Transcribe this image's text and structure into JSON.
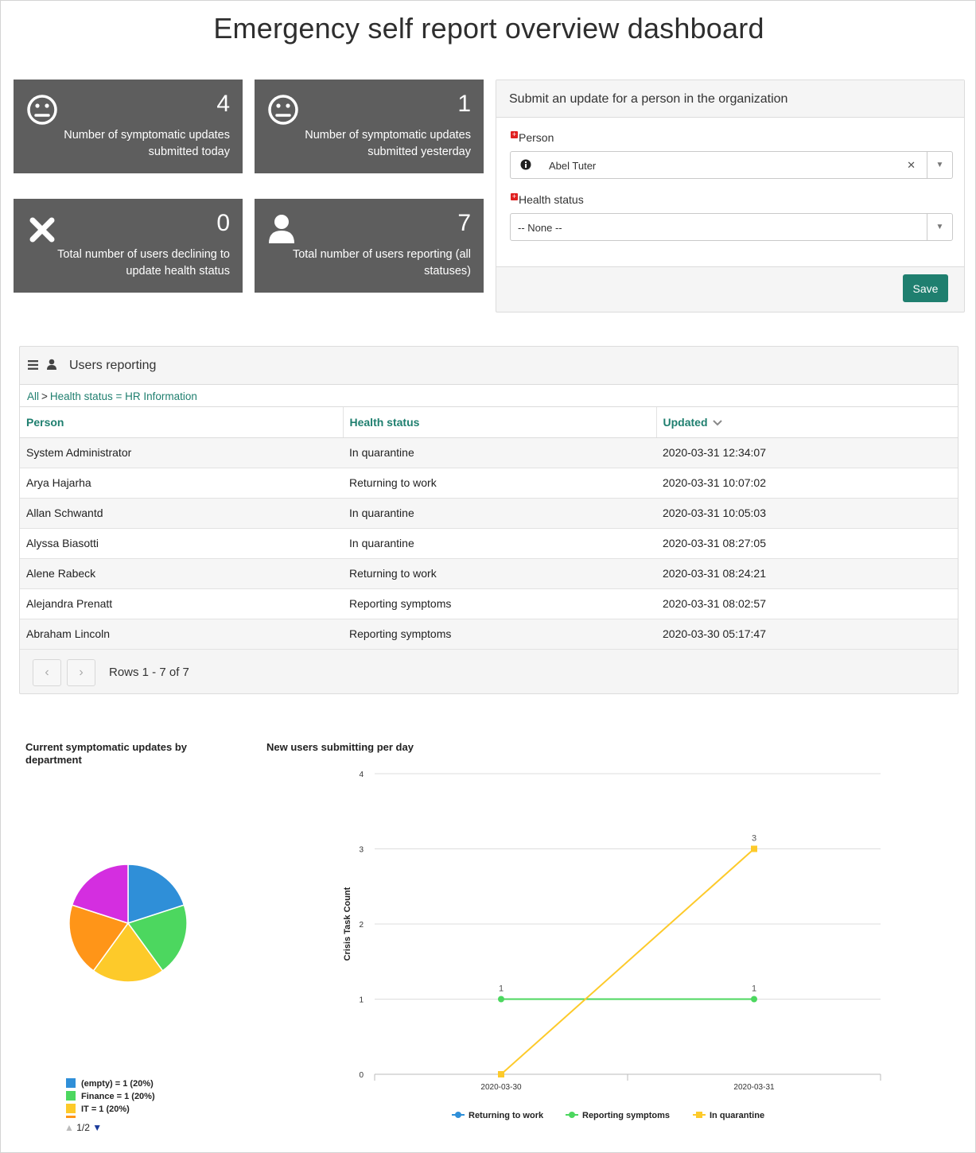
{
  "page": {
    "title": "Emergency self report overview dashboard"
  },
  "tiles": [
    {
      "value": "4",
      "label": "Number of symptomatic updates submitted today",
      "icon": "neutral-face-icon"
    },
    {
      "value": "1",
      "label": "Number of symptomatic updates submitted yesterday",
      "icon": "neutral-face-icon"
    },
    {
      "value": "0",
      "label": "Total number of users declining to update health status",
      "icon": "x-mark-icon"
    },
    {
      "value": "7",
      "label": "Total number of users reporting (all statuses)",
      "icon": "user-icon"
    }
  ],
  "form": {
    "title": "Submit an update for a person in the organization",
    "person_label": "Person",
    "person_value": "Abel Tuter",
    "health_label": "Health status",
    "health_value": "-- None --",
    "save_label": "Save"
  },
  "list": {
    "title": "Users reporting",
    "breadcrumb_all": "All",
    "breadcrumb_sep": ">",
    "breadcrumb_filter": "Health status = HR Information",
    "columns": [
      "Person",
      "Health status",
      "Updated"
    ],
    "rows": [
      [
        "System Administrator",
        "In quarantine",
        "2020-03-31 12:34:07"
      ],
      [
        "Arya Hajarha",
        "Returning to work",
        "2020-03-31 10:07:02"
      ],
      [
        "Allan Schwantd",
        "In quarantine",
        "2020-03-31 10:05:03"
      ],
      [
        "Alyssa Biasotti",
        "In quarantine",
        "2020-03-31 08:27:05"
      ],
      [
        "Alene Rabeck",
        "Returning to work",
        "2020-03-31 08:24:21"
      ],
      [
        "Alejandra Prenatt",
        "Reporting symptoms",
        "2020-03-31 08:02:57"
      ],
      [
        "Abraham Lincoln",
        "Reporting symptoms",
        "2020-03-30 05:17:47"
      ]
    ],
    "rows_info": "Rows 1 - 7 of 7"
  },
  "chart_data": [
    {
      "type": "pie",
      "title": "Current symptomatic updates by department",
      "slices": [
        {
          "label": "(empty)",
          "value": 1,
          "color": "#2f8fd8",
          "legend": "(empty) = 1 (20%)"
        },
        {
          "label": "Finance",
          "value": 1,
          "color": "#4cd75f",
          "legend": "Finance = 1 (20%)"
        },
        {
          "label": "IT",
          "value": 1,
          "color": "#fdca2a",
          "legend": "IT = 1 (20%)"
        },
        {
          "label": "",
          "value": 1,
          "color": "#ff9518",
          "legend": ""
        },
        {
          "label": "",
          "value": 1,
          "color": "#d42ee0",
          "legend": ""
        }
      ],
      "legend_pager": "1/2"
    },
    {
      "type": "line",
      "title": "New users submitting per day",
      "ylabel": "Crisis Task Count",
      "xlabel": "",
      "categories": [
        "2020-03-30",
        "2020-03-31"
      ],
      "ylim": [
        0,
        4
      ],
      "yticks": [
        0,
        1,
        2,
        3,
        4
      ],
      "series": [
        {
          "name": "Returning to work",
          "values": [
            null,
            null
          ],
          "color": "#2f8fd8",
          "marker": "circle"
        },
        {
          "name": "Reporting symptoms",
          "values": [
            1,
            1
          ],
          "color": "#4cd75f",
          "marker": "circle"
        },
        {
          "name": "In quarantine",
          "values": [
            0,
            3
          ],
          "color": "#fdca2a",
          "marker": "square"
        }
      ],
      "data_labels": {
        "Reporting symptoms": [
          "1",
          "1"
        ],
        "In quarantine": [
          "",
          "3"
        ]
      }
    }
  ]
}
